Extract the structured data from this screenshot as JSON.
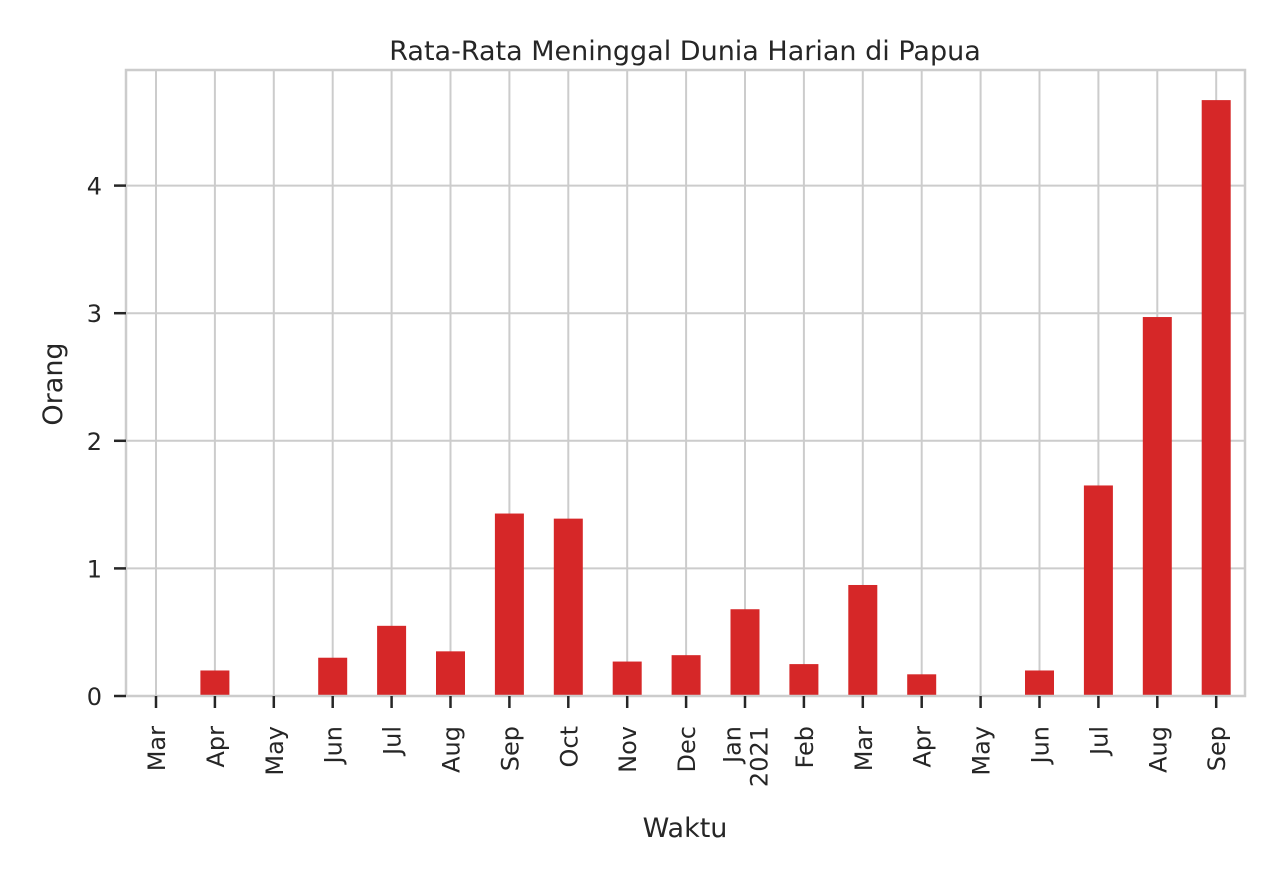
{
  "chart_data": {
    "type": "bar",
    "title": "Rata-Rata Meninggal Dunia Harian di Papua",
    "xlabel": "Waktu",
    "ylabel": "Orang",
    "categories": [
      "Mar",
      "Apr",
      "May",
      "Jun",
      "Jul",
      "Aug",
      "Sep",
      "Oct",
      "Nov",
      "Dec",
      "Jan\n2021",
      "Feb",
      "Mar",
      "Apr",
      "May",
      "Jun",
      "Jul",
      "Aug",
      "Sep"
    ],
    "values": [
      0,
      0.2,
      0,
      0.3,
      0.55,
      0.35,
      1.43,
      1.39,
      0.27,
      0.32,
      0.68,
      0.25,
      0.87,
      0.17,
      0,
      0.2,
      1.65,
      2.97,
      4.67
    ],
    "ylim": [
      0,
      4.9
    ],
    "yticks": [
      0,
      1,
      2,
      3,
      4
    ],
    "grid": true,
    "bar_color": "#d62728",
    "grid_color": "#cccccc",
    "axis_color": "#cccccc"
  }
}
